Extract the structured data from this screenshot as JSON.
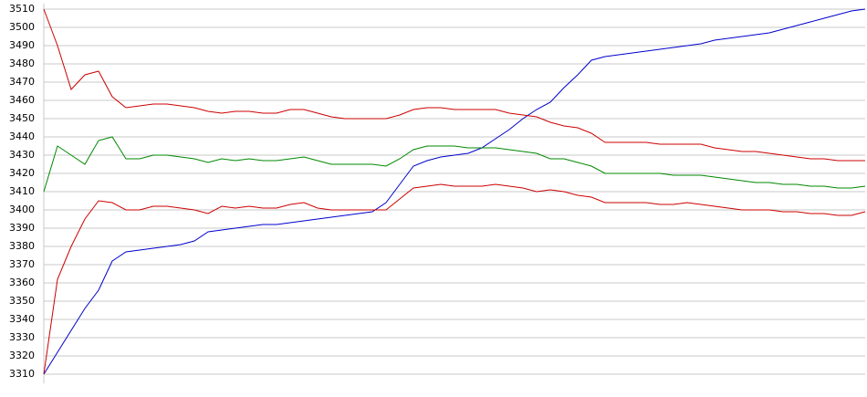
{
  "chart_data": {
    "type": "line",
    "ylim": [
      3310,
      3510
    ],
    "yticks": [
      3310,
      3320,
      3330,
      3340,
      3350,
      3360,
      3370,
      3380,
      3390,
      3400,
      3410,
      3420,
      3430,
      3440,
      3450,
      3460,
      3470,
      3480,
      3490,
      3500,
      3510
    ],
    "grid": true,
    "series": [
      {
        "color": "#0000cc",
        "values": [
          3310,
          3322,
          3334,
          3346,
          3356,
          3372,
          3377,
          3378,
          3379,
          3380,
          3381,
          3383,
          3388,
          3389,
          3390,
          3391,
          3392,
          3392,
          3393,
          3394,
          3395,
          3396,
          3397,
          3398,
          3399,
          3404,
          3414,
          3424,
          3427,
          3429,
          3430,
          3431,
          3434,
          3439,
          3444,
          3450,
          3455,
          3459,
          3467,
          3474,
          3482,
          3484,
          3485,
          3486,
          3487,
          3488,
          3489,
          3490,
          3491,
          3493,
          3494,
          3495,
          3496,
          3497,
          3499,
          3501,
          3503,
          3505,
          3507,
          3509,
          3510
        ]
      },
      {
        "color": "#cc0000",
        "values": [
          3510,
          3490,
          3466,
          3474,
          3476,
          3462,
          3456,
          3457,
          3458,
          3458,
          3457,
          3456,
          3454,
          3453,
          3454,
          3454,
          3453,
          3453,
          3455,
          3455,
          3453,
          3451,
          3450,
          3450,
          3450,
          3450,
          3452,
          3455,
          3456,
          3456,
          3455,
          3455,
          3455,
          3455,
          3453,
          3452,
          3451,
          3448,
          3446,
          3445,
          3442,
          3437,
          3437,
          3437,
          3437,
          3436,
          3436,
          3436,
          3436,
          3434,
          3433,
          3432,
          3432,
          3431,
          3430,
          3429,
          3428,
          3428,
          3427,
          3427,
          3427
        ]
      },
      {
        "color": "#008800",
        "values": [
          3410,
          3435,
          3430,
          3425,
          3438,
          3440,
          3428,
          3428,
          3430,
          3430,
          3429,
          3428,
          3426,
          3428,
          3427,
          3428,
          3427,
          3427,
          3428,
          3429,
          3427,
          3425,
          3425,
          3425,
          3425,
          3424,
          3428,
          3433,
          3435,
          3435,
          3435,
          3434,
          3434,
          3434,
          3433,
          3432,
          3431,
          3428,
          3428,
          3426,
          3424,
          3420,
          3420,
          3420,
          3420,
          3420,
          3419,
          3419,
          3419,
          3418,
          3417,
          3416,
          3415,
          3415,
          3414,
          3414,
          3413,
          3413,
          3412,
          3412,
          3413
        ]
      },
      {
        "color": "#cc0000",
        "values": [
          3310,
          3362,
          3380,
          3395,
          3405,
          3404,
          3400,
          3400,
          3402,
          3402,
          3401,
          3400,
          3398,
          3402,
          3401,
          3402,
          3401,
          3401,
          3403,
          3404,
          3401,
          3400,
          3400,
          3400,
          3400,
          3400,
          3406,
          3412,
          3413,
          3414,
          3413,
          3413,
          3413,
          3414,
          3413,
          3412,
          3410,
          3411,
          3410,
          3408,
          3407,
          3404,
          3404,
          3404,
          3404,
          3403,
          3403,
          3404,
          3403,
          3402,
          3401,
          3400,
          3400,
          3400,
          3399,
          3399,
          3398,
          3398,
          3397,
          3397,
          3399
        ]
      }
    ]
  }
}
